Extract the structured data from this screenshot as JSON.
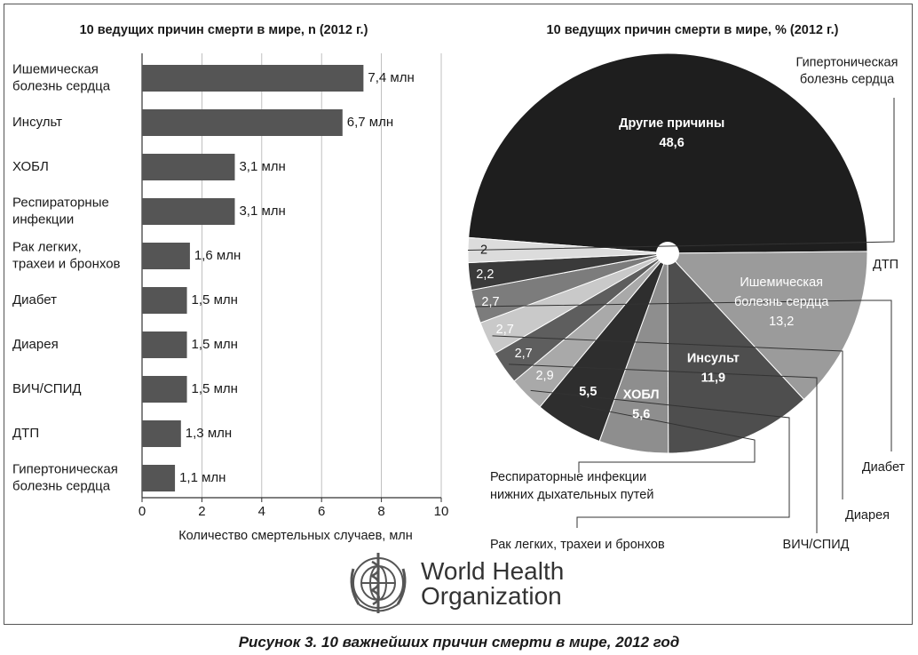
{
  "figure": {
    "caption": "Рисунок 3.  10 важнейших причин смерти в мире, 2012 год",
    "logo_text": [
      "World Health",
      "Organization"
    ]
  },
  "chart_data": [
    {
      "type": "bar",
      "orientation": "horizontal",
      "title": "10 ведущих причин смерти в мире, n (2012 г.)",
      "xlabel": "Количество смертельных случаев, млн",
      "xlim": [
        0,
        10
      ],
      "xticks": [
        "0",
        "2",
        "4",
        "6",
        "8",
        "10"
      ],
      "grid": true,
      "bar_color": "#555555",
      "categories": [
        [
          "Ишемическая",
          "болезнь сердца"
        ],
        [
          "Инсульт"
        ],
        [
          "ХОБЛ"
        ],
        [
          "Респираторные",
          "инфекции"
        ],
        [
          "Рак легких,",
          "трахеи и бронхов"
        ],
        [
          "Диабет"
        ],
        [
          "Диарея"
        ],
        [
          "ВИЧ/СПИД"
        ],
        [
          "ДТП"
        ],
        [
          "Гипертоническая",
          "болезнь сердца"
        ]
      ],
      "values": [
        7.4,
        6.7,
        3.1,
        3.1,
        1.6,
        1.5,
        1.5,
        1.5,
        1.3,
        1.1
      ],
      "value_labels": [
        "7,4 млн",
        "6,7 млн",
        "3,1 млн",
        "3,1 млн",
        "1,6 млн",
        "1,5 млн",
        "1,5 млн",
        "1,5 млн",
        "1,3 млн",
        "1,1 млн"
      ]
    },
    {
      "type": "pie",
      "title": "10 ведущих причин смерти в мире, % (2012 г.)",
      "slices": [
        {
          "label": [
            "Другие причины"
          ],
          "value": 48.6,
          "display": "48,6",
          "color": "#1e1e1e",
          "text_color": "#ffffff"
        },
        {
          "label": [
            "Ишемическая",
            "болезнь сердца"
          ],
          "value": 13.2,
          "display": "13,2",
          "color": "#9b9b9b",
          "text_color": "#ffffff"
        },
        {
          "label": [
            "Инсульт"
          ],
          "value": 11.9,
          "display": "11,9",
          "color": "#4e4e4e",
          "text_color": "#ffffff"
        },
        {
          "label": [
            "ХОБЛ"
          ],
          "value": 5.6,
          "display": "5,6",
          "color": "#8e8e8e",
          "text_color": "#ffffff"
        },
        {
          "label": [
            "Респираторные инфекции",
            "нижних дыхательных путей"
          ],
          "value": 5.5,
          "display": "5,5",
          "color": "#2e2e2e",
          "text_color": "#ffffff"
        },
        {
          "label": [
            "Рак легких, трахеи и бронхов"
          ],
          "value": 2.9,
          "display": "2,9",
          "color": "#a9a9a9",
          "text_color": "#ffffff"
        },
        {
          "label": [
            "ВИЧ/СПИД"
          ],
          "value": 2.7,
          "display": "2,7",
          "color": "#5e5e5e",
          "text_color": "#ffffff"
        },
        {
          "label": [
            "Диарея"
          ],
          "value": 2.7,
          "display": "2,7",
          "color": "#c9c9c9",
          "text_color": "#ffffff"
        },
        {
          "label": [
            "Диабет"
          ],
          "value": 2.7,
          "display": "2,7",
          "color": "#7c7c7c",
          "text_color": "#ffffff"
        },
        {
          "label": [
            "ДТП"
          ],
          "value": 2.2,
          "display": "2,2",
          "color": "#3a3a3a",
          "text_color": "#ffffff"
        },
        {
          "label": [
            "Гипертоническая",
            "болезнь сердца"
          ],
          "value": 2.0,
          "display": "2",
          "color": "#dcdcdc",
          "text_color": "#1a1a1a"
        }
      ]
    }
  ]
}
